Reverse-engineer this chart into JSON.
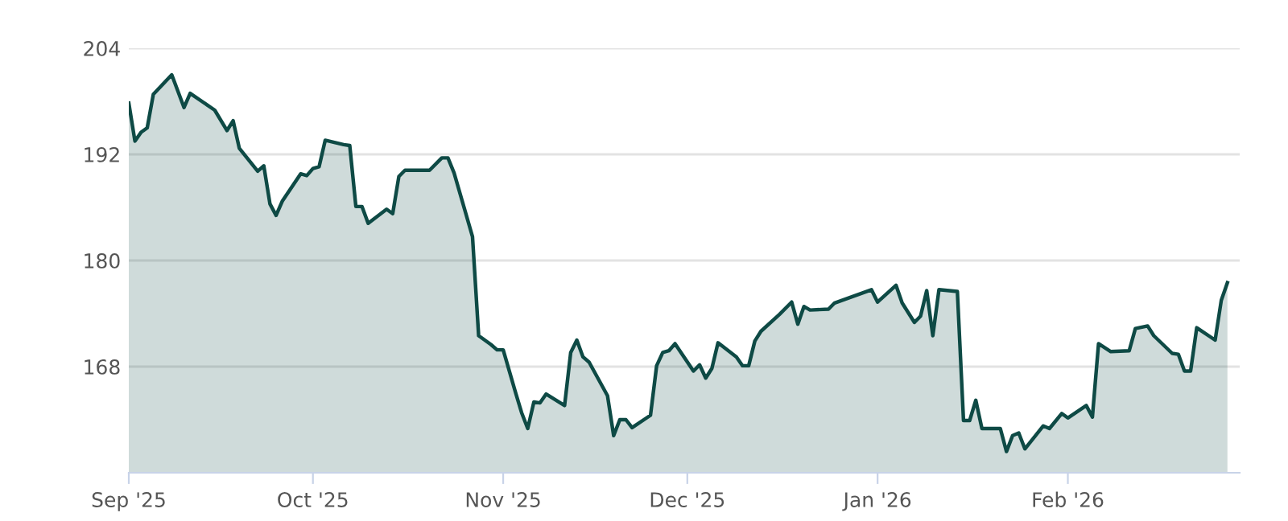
{
  "chart_data": {
    "type": "area",
    "x": [
      "2025-09-01",
      "2025-09-02",
      "2025-09-03",
      "2025-09-04",
      "2025-09-05",
      "2025-09-08",
      "2025-09-10",
      "2025-09-11",
      "2025-09-15",
      "2025-09-17",
      "2025-09-18",
      "2025-09-19",
      "2025-09-22",
      "2025-09-23",
      "2025-09-24",
      "2025-09-25",
      "2025-09-26",
      "2025-09-29",
      "2025-09-30",
      "2025-10-01",
      "2025-10-02",
      "2025-10-03",
      "2025-10-06",
      "2025-10-07",
      "2025-10-08",
      "2025-10-09",
      "2025-10-10",
      "2025-10-13",
      "2025-10-14",
      "2025-10-15",
      "2025-10-16",
      "2025-10-20",
      "2025-10-22",
      "2025-10-23",
      "2025-10-24",
      "2025-10-27",
      "2025-10-28",
      "2025-10-30",
      "2025-10-31",
      "2025-11-01",
      "2025-11-03",
      "2025-11-04",
      "2025-11-05",
      "2025-11-06",
      "2025-11-07",
      "2025-11-08",
      "2025-11-11",
      "2025-11-12",
      "2025-11-13",
      "2025-11-14",
      "2025-11-15",
      "2025-11-18",
      "2025-11-19",
      "2025-11-20",
      "2025-11-21",
      "2025-11-22",
      "2025-11-25",
      "2025-11-26",
      "2025-11-27",
      "2025-11-28",
      "2025-11-29",
      "2025-12-02",
      "2025-12-03",
      "2025-12-04",
      "2025-12-05",
      "2025-12-06",
      "2025-12-09",
      "2025-12-10",
      "2025-12-11",
      "2025-12-12",
      "2025-12-13",
      "2025-12-16",
      "2025-12-18",
      "2025-12-19",
      "2025-12-20",
      "2025-12-21",
      "2025-12-24",
      "2025-12-25",
      "2025-12-31",
      "2026-01-01",
      "2026-01-04",
      "2026-01-05",
      "2026-01-07",
      "2026-01-08",
      "2026-01-09",
      "2026-01-10",
      "2026-01-11",
      "2026-01-14",
      "2026-01-15",
      "2026-01-16",
      "2026-01-17",
      "2026-01-18",
      "2026-01-21",
      "2026-01-22",
      "2026-01-23",
      "2026-01-24",
      "2026-01-25",
      "2026-01-28",
      "2026-01-29",
      "2026-01-31",
      "2026-02-01",
      "2026-02-04",
      "2026-02-05",
      "2026-02-06",
      "2026-02-08",
      "2026-02-11",
      "2026-02-12",
      "2026-02-14",
      "2026-02-15",
      "2026-02-18",
      "2026-02-19",
      "2026-02-20",
      "2026-02-21",
      "2026-02-22",
      "2026-02-25",
      "2026-02-26",
      "2026-02-27"
    ],
    "series": [
      {
        "color": "#0e4a45",
        "values": [
          197.8,
          193.5,
          194.5,
          195.0,
          198.8,
          201.0,
          197.3,
          198.9,
          197.0,
          194.7,
          195.8,
          192.7,
          190.1,
          190.7,
          186.4,
          185.1,
          186.7,
          189.8,
          189.6,
          190.4,
          190.6,
          193.6,
          193.1,
          193.0,
          186.1,
          186.1,
          184.2,
          185.8,
          185.3,
          189.5,
          190.2,
          190.2,
          191.6,
          191.6,
          189.9,
          182.7,
          171.5,
          170.5,
          169.9,
          169.9,
          165.1,
          162.8,
          161.0,
          164.0,
          163.9,
          164.9,
          163.6,
          169.6,
          171.0,
          169.1,
          168.5,
          164.7,
          160.2,
          162.0,
          162.0,
          161.1,
          162.5,
          168.1,
          169.6,
          169.8,
          170.6,
          167.5,
          168.2,
          166.7,
          167.8,
          170.7,
          169.1,
          168.1,
          168.1,
          170.9,
          172.0,
          173.9,
          175.3,
          172.8,
          174.8,
          174.4,
          174.5,
          175.2,
          176.7,
          175.3,
          177.2,
          175.2,
          173.0,
          173.7,
          176.6,
          171.5,
          176.7,
          176.5,
          161.9,
          161.9,
          164.2,
          161.0,
          161.0,
          158.4,
          160.2,
          160.5,
          158.7,
          161.3,
          161.0,
          162.7,
          162.2,
          163.6,
          162.3,
          170.6,
          169.7,
          169.8,
          172.3,
          172.6,
          171.5,
          169.5,
          169.4,
          167.5,
          167.5,
          172.4,
          171.0,
          175.5,
          177.5
        ]
      }
    ],
    "xlim": [
      "2025-09-01",
      "2026-03-01"
    ],
    "xticks": [
      {
        "value": "2025-09-01",
        "label": "Sep '25"
      },
      {
        "value": "2025-10-01",
        "label": "Oct '25"
      },
      {
        "value": "2025-11-01",
        "label": "Nov '25"
      },
      {
        "value": "2025-12-01",
        "label": "Dec '25"
      },
      {
        "value": "2026-01-01",
        "label": "Jan '26"
      },
      {
        "value": "2026-02-01",
        "label": "Feb '26"
      }
    ],
    "ylim": [
      156,
      204
    ],
    "yticks": [
      168,
      180,
      192,
      204
    ],
    "grid": "y"
  }
}
